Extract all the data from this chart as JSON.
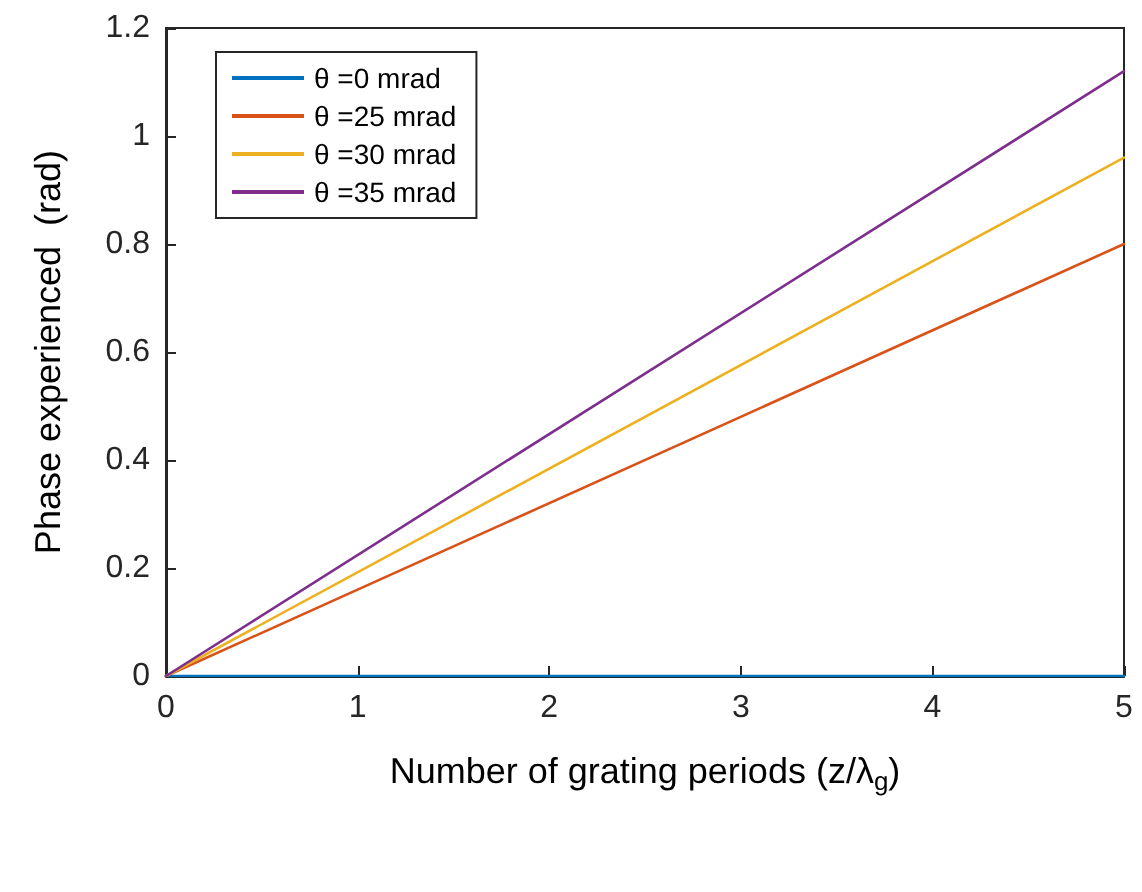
{
  "chart_data": {
    "type": "line",
    "xlabel": "Number of grating periods (z/λ$_{g}$)",
    "ylabel": "Phase experienced  (rad)",
    "x": [
      0,
      5
    ],
    "series": [
      {
        "name": "θ =0 mrad",
        "color": "#0072bd",
        "values": [
          0,
          0
        ]
      },
      {
        "name": "θ =25 mrad",
        "color": "#d95319",
        "values": [
          0,
          0.8
        ]
      },
      {
        "name": "θ =30 mrad",
        "color": "#edb120",
        "values": [
          0,
          0.96
        ]
      },
      {
        "name": "θ =35 mrad",
        "color": "#7e2f8e",
        "values": [
          0,
          1.12
        ]
      }
    ],
    "xlim": [
      0,
      5
    ],
    "xticks": [
      0,
      1,
      2,
      3,
      4,
      5
    ],
    "ylim": [
      0,
      1.2
    ],
    "yticks": [
      0,
      0.2,
      0.4,
      0.6,
      0.8,
      1,
      1.2
    ],
    "legend": "top left",
    "grid": false,
    "marker": "none",
    "line_style": "solid"
  }
}
